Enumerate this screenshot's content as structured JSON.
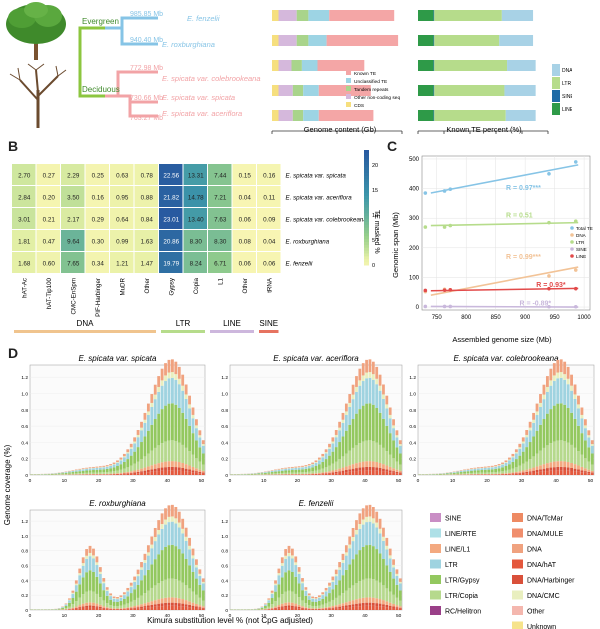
{
  "panel_labels": {
    "a": "A",
    "b": "B",
    "c": "C",
    "d": "D"
  },
  "panel_a": {
    "group_evergreen": "Evergreen",
    "group_deciduous": "Deciduous",
    "species": [
      {
        "name": "E. fenzelii",
        "size": "985.85 Mb",
        "group": "evergreen"
      },
      {
        "name": "E. roxburghiana",
        "size": "940.40 Mb",
        "group": "evergreen"
      },
      {
        "name": "E. spicata var. colebrookeana",
        "size": "772.98 Mb",
        "group": "deciduous"
      },
      {
        "name": "E. spicata var. spicata",
        "size": "730.66 Mb",
        "group": "deciduous"
      },
      {
        "name": "E. spicata var. aceriflora",
        "size": "763.27 Mb",
        "group": "deciduous"
      }
    ],
    "colors": {
      "evergreen": "#86c4e6",
      "deciduous": "#f2a3a6",
      "evergreen_branch": "#8cc63f"
    }
  },
  "chart_data": [
    {
      "id": "genome_content",
      "type": "bar",
      "orientation": "horizontal-stacked",
      "xlabel": "Genome content (Gb)",
      "xlim": [
        0,
        1.0
      ],
      "xticks": [
        "0",
        "0.5",
        "1.0"
      ],
      "categories": [
        "E. fenzelii",
        "E. roxburghiana",
        "E. spicata var. colebrookeana",
        "E. spicata var. spicata",
        "E. spicata var. aceriflora"
      ],
      "series": [
        {
          "name": "CDS",
          "color": "#f6df7e",
          "values": [
            0.05,
            0.05,
            0.05,
            0.05,
            0.05
          ]
        },
        {
          "name": "Other non-coding seq",
          "color": "#d5b8dc",
          "values": [
            0.14,
            0.14,
            0.1,
            0.11,
            0.11
          ]
        },
        {
          "name": "Tandem repeats",
          "color": "#a9d48b",
          "values": [
            0.09,
            0.09,
            0.08,
            0.08,
            0.08
          ]
        },
        {
          "name": "Unclassified TE",
          "color": "#9dd4e4",
          "values": [
            0.16,
            0.14,
            0.12,
            0.12,
            0.12
          ]
        },
        {
          "name": "Known TE",
          "color": "#f4a6a6",
          "values": [
            0.5,
            0.55,
            0.36,
            0.4,
            0.42
          ]
        }
      ],
      "legend": [
        "Known TE",
        "Unclassified TE",
        "Tandem repeats",
        "Other non-coding seq",
        "CDS"
      ],
      "legend_loc": "lower-right"
    },
    {
      "id": "known_te_percent",
      "type": "bar",
      "orientation": "horizontal-stacked",
      "xlabel": "Known TE percent (%)",
      "xlim": [
        0,
        100
      ],
      "xticks": [
        "0",
        "20",
        "40",
        "60",
        "80",
        "100"
      ],
      "categories": [
        "E. fenzelii",
        "E. roxburghiana",
        "E. spicata var. colebrookeana",
        "E. spicata var. spicata",
        "E. spicata var. aceriflora"
      ],
      "series": [
        {
          "name": "LINE",
          "color": "#2e9a48",
          "values": [
            12,
            12,
            12,
            12,
            12
          ]
        },
        {
          "name": "SINE",
          "color": "#1f6ba5",
          "values": [
            0.5,
            0.5,
            0.5,
            0.5,
            0.5
          ]
        },
        {
          "name": "LTR",
          "color": "#b6dc8b",
          "values": [
            52,
            50,
            56,
            54,
            55
          ]
        },
        {
          "name": "DNA",
          "color": "#a8d2e6",
          "values": [
            24,
            26,
            22,
            24,
            23
          ]
        }
      ],
      "legend": [
        "DNA",
        "LTR",
        "SINE",
        "LINE"
      ],
      "legend_loc": "right"
    },
    {
      "id": "te_heatmap",
      "type": "heatmap",
      "rows": [
        "E. spicata var. spicata",
        "E. spicata var. aceriflora",
        "E. spicata var. colebrookeana",
        "E. roxburghiana",
        "E. fenzelii"
      ],
      "columns": [
        "hAT-Ac",
        "hAT-Tip100",
        "CMC-EnSpm",
        "PIF-Harbinger",
        "MuDR",
        "Other",
        "Gypsy",
        "Copia",
        "L1",
        "Other",
        "tRNA"
      ],
      "values": [
        [
          2.7,
          0.27,
          2.29,
          0.25,
          0.63,
          0.78,
          22.56,
          13.31,
          7.44,
          0.15,
          0.16
        ],
        [
          2.84,
          0.2,
          3.5,
          0.16,
          0.95,
          0.88,
          21.82,
          14.78,
          7.21,
          0.04,
          0.11
        ],
        [
          3.01,
          0.21,
          2.17,
          0.29,
          0.64,
          0.84,
          23.01,
          13.4,
          7.63,
          0.06,
          0.09
        ],
        [
          1.81,
          0.47,
          9.64,
          0.3,
          0.99,
          1.63,
          20.86,
          8.3,
          8.3,
          0.08,
          0.04
        ],
        [
          1.68,
          0.6,
          7.65,
          0.34,
          1.21,
          1.47,
          19.79,
          8.24,
          6.71,
          0.06,
          0.06
        ]
      ],
      "colorbar_label": "TE masked %",
      "colorbar_ticks": [
        "0",
        "5",
        "10",
        "15",
        "20"
      ],
      "vmin": 0,
      "vmax": 23,
      "column_groups": [
        {
          "name": "DNA",
          "span": 6,
          "color": "#f0c48e"
        },
        {
          "name": "LTR",
          "span": 2,
          "color": "#b6dc8b"
        },
        {
          "name": "LINE",
          "span": 2,
          "color": "#cdb7dd"
        },
        {
          "name": "SINE",
          "span": 1,
          "color": "#e67360"
        }
      ]
    },
    {
      "id": "genome_size_scatter",
      "type": "scatter",
      "xlabel": "Assembled genome size (Mb)",
      "ylabel": "Genomic span (Mb)",
      "xlim": [
        725,
        1010
      ],
      "ylim": [
        -10,
        510
      ],
      "xticks": [
        750,
        800,
        850,
        900,
        950,
        1000
      ],
      "yticks": [
        0,
        100,
        200,
        300,
        400,
        500
      ],
      "series": [
        {
          "name": "Total TE",
          "color": "#86c4e6",
          "x": [
            730.66,
            763.27,
            772.98,
            940.4,
            985.85
          ],
          "y": [
            385,
            392,
            398,
            450,
            490
          ],
          "fit": [
            [
              740,
              385
            ],
            [
              990,
              480
            ]
          ],
          "r_text": "R = 0.97***"
        },
        {
          "name": "DNA",
          "color": "#f2c397",
          "x": [
            730.66,
            763.27,
            772.98,
            940.4,
            985.85
          ],
          "y": [
            52,
            60,
            58,
            105,
            125
          ],
          "fit": [
            [
              740,
              40
            ],
            [
              990,
              135
            ]
          ],
          "r_text": "R = 0.99***"
        },
        {
          "name": "LTR",
          "color": "#b6dc8b",
          "x": [
            730.66,
            763.27,
            772.98,
            940.4,
            985.85
          ],
          "y": [
            270,
            270,
            275,
            285,
            290
          ],
          "fit": [
            [
              740,
              275
            ],
            [
              990,
              285
            ]
          ],
          "r_text": "R = 0.51"
        },
        {
          "name": "SINE",
          "color": "#c9b8dc",
          "x": [
            730.66,
            763.27,
            772.98,
            940.4,
            985.85
          ],
          "y": [
            2,
            2,
            2,
            1,
            1
          ],
          "fit": [
            [
              740,
              2
            ],
            [
              990,
              0
            ]
          ],
          "r_text": "R = -0.89*"
        },
        {
          "name": "LINE",
          "color": "#e24a4a",
          "x": [
            730.66,
            763.27,
            772.98,
            940.4,
            985.85
          ],
          "y": [
            56,
            57,
            58,
            62,
            62
          ],
          "fit": [
            [
              740,
              55
            ],
            [
              990,
              63
            ]
          ],
          "r_text": "R = 0.93*"
        }
      ],
      "legend": [
        "Total TE",
        "DNA",
        "LTR",
        "SINE",
        "LINE"
      ],
      "legend_loc": "right"
    },
    {
      "id": "kimura_landscape",
      "type": "bar",
      "subplots": [
        "E. spicata var. spicata",
        "E. spicata var. aceriflora",
        "E. spicata var. colebrookeana",
        "E. roxburghiana",
        "E. fenzelii"
      ],
      "xlabel": "Kimura substitution level % (not CpG adjusted)",
      "ylabel": "Genome coverage (%)",
      "xticks": [
        0,
        10,
        20,
        30,
        40,
        50
      ],
      "yticks": [
        "0",
        "0.2",
        "0.4",
        "0.6",
        "0.8",
        "1.0",
        "1.2"
      ],
      "ylim": [
        0,
        1.35
      ],
      "legend": [
        {
          "name": "SINE",
          "color": "#c98ec5"
        },
        {
          "name": "LINE/RTE",
          "color": "#aee0e7"
        },
        {
          "name": "LINE/L1",
          "color": "#f3a980"
        },
        {
          "name": "LTR",
          "color": "#9fd3e0"
        },
        {
          "name": "LTR/Gypsy",
          "color": "#93c85f"
        },
        {
          "name": "LTR/Copia",
          "color": "#b6d98d"
        },
        {
          "name": "RC/Helitron",
          "color": "#9a3f88"
        },
        {
          "name": "DNA/TcMar",
          "color": "#ee8a63"
        },
        {
          "name": "DNA/MULE",
          "color": "#f08e6d"
        },
        {
          "name": "DNA",
          "color": "#f0a27f"
        },
        {
          "name": "DNA/hAT",
          "color": "#e4583d"
        },
        {
          "name": "DNA/Harbinger",
          "color": "#d9503a"
        },
        {
          "name": "DNA/CMC",
          "color": "#e9efbf"
        },
        {
          "name": "Other",
          "color": "#f4b7ae"
        },
        {
          "name": "Unknown",
          "color": "#f6e38b"
        }
      ]
    }
  ]
}
